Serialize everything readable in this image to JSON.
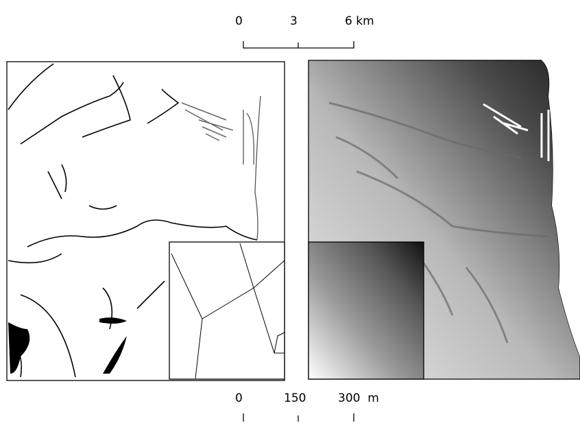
{
  "top_scale": {
    "labels": [
      "0",
      "3",
      "6 km"
    ]
  },
  "bottom_scale": {
    "labels": [
      "0",
      "150",
      "300  m"
    ]
  }
}
